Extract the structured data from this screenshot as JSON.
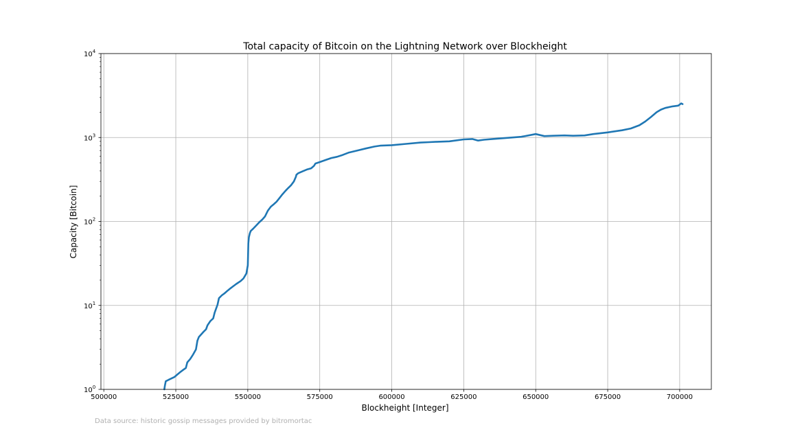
{
  "chart_data": {
    "type": "line",
    "title": "Total capacity of Bitcoin on the Lightning Network over Blockheight",
    "xlabel": "Blockheight [Integer]",
    "ylabel": "Capacity [Bitcoin]",
    "xlim": [
      499000,
      711000
    ],
    "ylim": [
      1,
      10000
    ],
    "yscale": "log",
    "grid": true,
    "x_ticks": [
      500000,
      525000,
      550000,
      575000,
      600000,
      625000,
      650000,
      675000,
      700000
    ],
    "x_tick_labels": [
      "500000",
      "525000",
      "550000",
      "575000",
      "600000",
      "625000",
      "650000",
      "675000",
      "700000"
    ],
    "y_ticks": [
      1,
      10,
      100,
      1000,
      10000
    ],
    "y_tick_labels": [
      {
        "base": "10",
        "exp": "0"
      },
      {
        "base": "10",
        "exp": "1"
      },
      {
        "base": "10",
        "exp": "2"
      },
      {
        "base": "10",
        "exp": "3"
      },
      {
        "base": "10",
        "exp": "4"
      }
    ],
    "line_color": "#1f77b4",
    "series": [
      {
        "x": [
          521000,
          521200,
          521500,
          522500,
          523500,
          524500,
          525500,
          526500,
          527500,
          528500,
          529000,
          530000,
          531000,
          532000,
          532500,
          533000,
          534500,
          535500,
          536000,
          537000,
          538000,
          538500,
          539500,
          540000,
          541000,
          542000,
          543000,
          544000,
          545000,
          546000,
          547500,
          548500,
          549500,
          550000,
          550200,
          550400,
          550700,
          551000,
          552000,
          553000,
          554000,
          555000,
          556000,
          557000,
          558000,
          559000,
          560000,
          561000,
          562000,
          563000,
          564000,
          565000,
          566000,
          566700,
          566900,
          567500,
          569000,
          570500,
          572000,
          573000,
          573500,
          575000,
          577000,
          579000,
          581000,
          583000,
          585000,
          588000,
          591000,
          594000,
          596000,
          600000,
          605000,
          610000,
          613000,
          616000,
          620000,
          625000,
          628000,
          630000,
          632000,
          635000,
          640000,
          645000,
          650000,
          653000,
          656000,
          660000,
          663000,
          667000,
          670000,
          675000,
          680000,
          683000,
          686000,
          688000,
          690000,
          692000,
          693500,
          695000,
          697500,
          699500,
          700500,
          701000
        ],
        "values": [
          1.0,
          1.1,
          1.25,
          1.3,
          1.35,
          1.4,
          1.5,
          1.6,
          1.7,
          1.8,
          2.1,
          2.3,
          2.6,
          3.0,
          3.8,
          4.2,
          4.8,
          5.2,
          5.8,
          6.5,
          7.0,
          8.2,
          10.2,
          12.2,
          13.2,
          14.0,
          15.0,
          16.0,
          17.0,
          18.0,
          19.5,
          21.0,
          24.0,
          30.0,
          55.0,
          65.0,
          72.0,
          77.0,
          83.0,
          90.0,
          98.0,
          105.0,
          115.0,
          135.0,
          150.0,
          160.0,
          172.0,
          190.0,
          210.0,
          230.0,
          250.0,
          270.0,
          300.0,
          340.0,
          360.0,
          375.0,
          395.0,
          415.0,
          430.0,
          460.0,
          490.0,
          510.0,
          540.0,
          570.0,
          590.0,
          620.0,
          660.0,
          700.0,
          740.0,
          780.0,
          800.0,
          810.0,
          840.0,
          870.0,
          880.0,
          890.0,
          900.0,
          950.0,
          960.0,
          920.0,
          940.0,
          960.0,
          990.0,
          1020.0,
          1100.0,
          1040.0,
          1050.0,
          1060.0,
          1050.0,
          1060.0,
          1100.0,
          1150.0,
          1220.0,
          1280.0,
          1400.0,
          1550.0,
          1750.0,
          2000.0,
          2150.0,
          2250.0,
          2350.0,
          2400.0,
          2550.0,
          2500.0
        ]
      }
    ]
  },
  "source_note": "Data source: historic gossip messages provided by bitromortac"
}
